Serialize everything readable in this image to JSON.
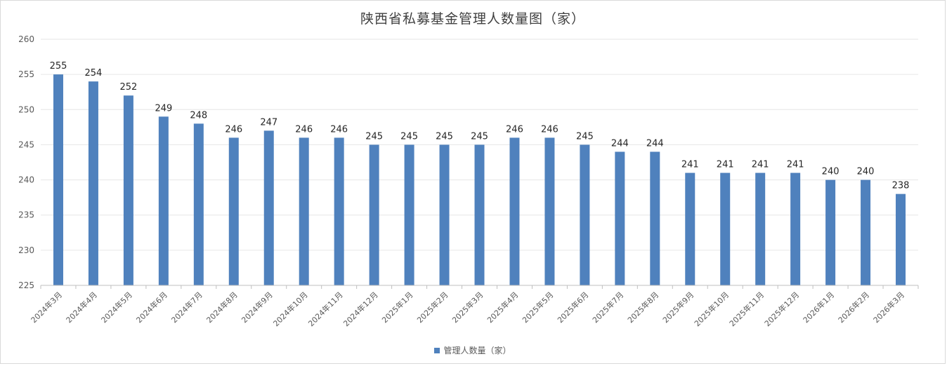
{
  "chart_data": {
    "type": "bar",
    "title": "陕西省私募基金管理人数量图（家）",
    "categories": [
      "2024年3月",
      "2024年4月",
      "2024年5月",
      "2024年6月",
      "2024年7月",
      "2024年8月",
      "2024年9月",
      "2024年10月",
      "2024年11月",
      "2024年12月",
      "2025年1月",
      "2025年2月",
      "2025年3月",
      "2025年4月",
      "2025年5月",
      "2025年6月",
      "2025年7月",
      "2025年8月",
      "2025年9月",
      "2025年10月",
      "2025年11月",
      "2025年12月",
      "2026年1月",
      "2026年2月",
      "2026年3月"
    ],
    "series": [
      {
        "name": "管理人数量（家）",
        "values": [
          255,
          254,
          252,
          249,
          248,
          246,
          247,
          246,
          246,
          245,
          245,
          245,
          245,
          246,
          246,
          245,
          244,
          244,
          241,
          241,
          241,
          241,
          240,
          240,
          238
        ]
      }
    ],
    "ylim": [
      225,
      260
    ],
    "yticks": [
      225,
      230,
      235,
      240,
      245,
      250,
      255,
      260
    ],
    "xlabel": "",
    "ylabel": "",
    "grid": true,
    "legend": "bottom",
    "data_labels": true,
    "bar_color": "#4F81BD"
  }
}
